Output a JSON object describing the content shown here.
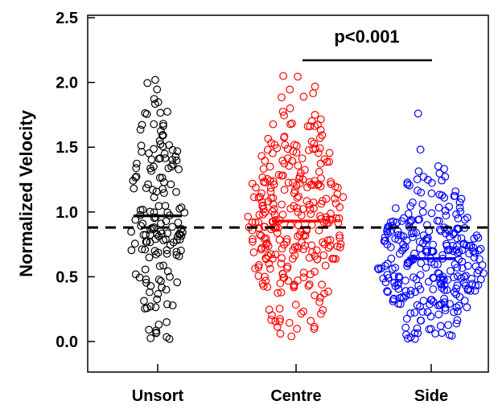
{
  "chart_data": {
    "type": "scatter",
    "subtype": "dot-plot",
    "title": "",
    "ylabel": "Normalized Velocity",
    "xlabel": "",
    "ylim": [
      -0.25,
      2.5
    ],
    "yticks": [
      "0.0",
      "0.5",
      "1.0",
      "1.5",
      "2.0",
      "2.5"
    ],
    "categories": [
      "Unsort",
      "Centre",
      "Side"
    ],
    "grid": false,
    "reference_line": {
      "y": 0.88,
      "style": "dashed"
    },
    "annotation": {
      "text": "p<0.001",
      "between": [
        "Centre",
        "Side"
      ]
    },
    "colors": {
      "Unsort": "#000000",
      "Centre": "#ff0000",
      "Side": "#0000ff"
    },
    "series": [
      {
        "category": "Unsort",
        "n": 160,
        "mean": 0.97,
        "max": 2.02,
        "min": 0.02,
        "color": "#000000"
      },
      {
        "category": "Centre",
        "n": 300,
        "mean": 0.93,
        "max": 2.05,
        "min": 0.04,
        "color": "#ff0000"
      },
      {
        "category": "Side",
        "n": 300,
        "mean": 0.64,
        "max": 1.76,
        "min": 0.02,
        "color": "#0000ff"
      }
    ]
  }
}
